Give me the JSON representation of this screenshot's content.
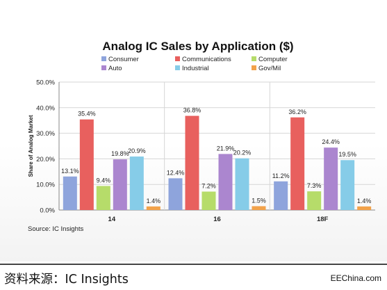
{
  "chart_data": {
    "type": "bar",
    "title": "Analog IC Sales by Application ($)",
    "ylabel": "Share of Analog Market",
    "xlabel": "",
    "ylim": [
      0,
      50
    ],
    "yticks": [
      "0.0%",
      "10.0%",
      "20.0%",
      "30.0%",
      "40.0%",
      "50.0%"
    ],
    "categories": [
      "14",
      "16",
      "18F"
    ],
    "grid": true,
    "legend": "top",
    "series": [
      {
        "name": "Consumer",
        "color": "#8ea4dc",
        "values": [
          13.1,
          12.4,
          11.2
        ],
        "labels": [
          "13.1%",
          "12.4%",
          "11.2%"
        ]
      },
      {
        "name": "Communications",
        "color": "#e8605e",
        "values": [
          35.4,
          36.8,
          36.2
        ],
        "labels": [
          "35.4%",
          "36.8%",
          "36.2%"
        ]
      },
      {
        "name": "Computer",
        "color": "#b6dc6a",
        "values": [
          9.4,
          7.2,
          7.3
        ],
        "labels": [
          "9.4%",
          "7.2%",
          "7.3%"
        ]
      },
      {
        "name": "Auto",
        "color": "#ab86cf",
        "values": [
          19.8,
          21.9,
          24.4
        ],
        "labels": [
          "19.8%",
          "21.9%",
          "24.4%"
        ]
      },
      {
        "name": "Industrial",
        "color": "#86cce8",
        "values": [
          20.9,
          20.2,
          19.5
        ],
        "labels": [
          "20.9%",
          "20.2%",
          "19.5%"
        ]
      },
      {
        "name": "Gov/Mil",
        "color": "#f2a24a",
        "values": [
          1.4,
          1.5,
          1.4
        ],
        "labels": [
          "1.4%",
          "1.5%",
          "1.4%"
        ]
      }
    ]
  },
  "source_note": "Source:  IC Insights",
  "footer": {
    "source": "资料来源：IC Insights",
    "brand": "EEChina.com"
  }
}
